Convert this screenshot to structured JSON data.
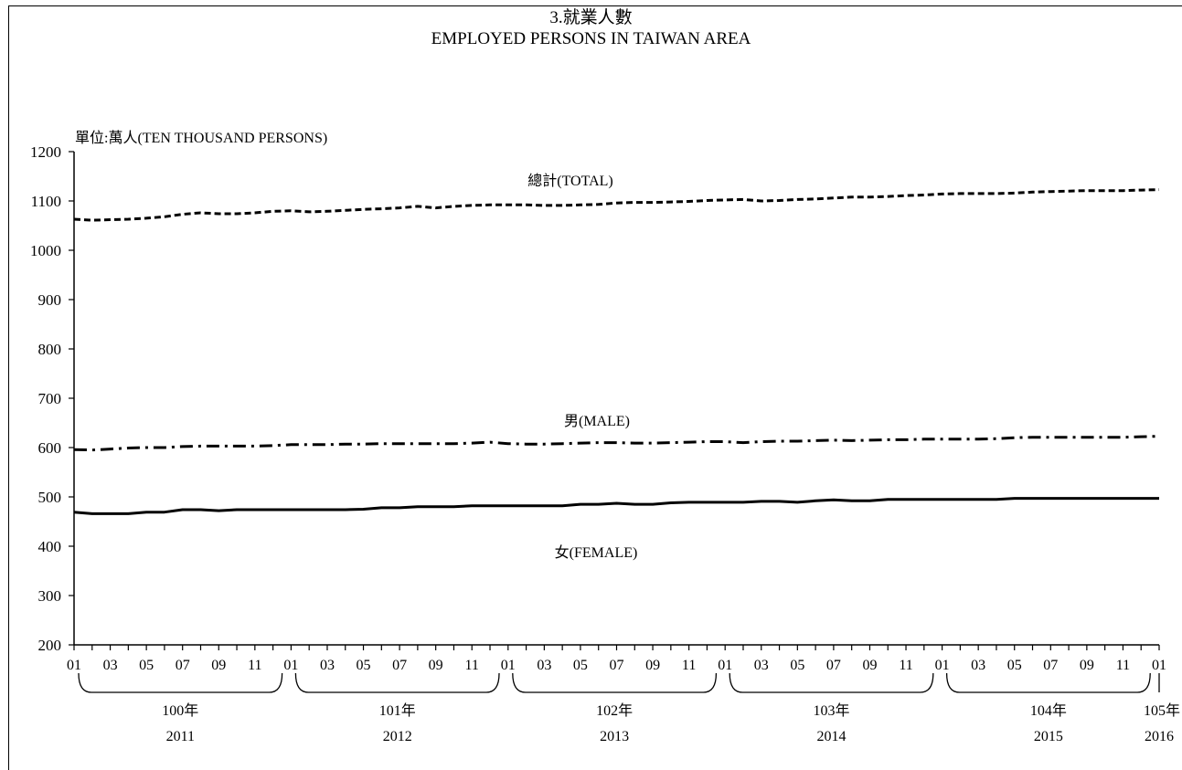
{
  "title": "3.就業人數",
  "subtitle": "EMPLOYED PERSONS IN TAIWAN AREA",
  "unit_label": "單位:萬人(TEN  THOUSAND PERSONS)",
  "chart_data": {
    "type": "line",
    "ylim": [
      200,
      1200
    ],
    "yticks": [
      200,
      300,
      400,
      500,
      600,
      700,
      800,
      900,
      1000,
      1100,
      1200
    ],
    "month_labels": [
      "01",
      "03",
      "05",
      "07",
      "09",
      "11"
    ],
    "final_month_label": "01",
    "years": [
      {
        "roc": "100年",
        "ad": "2011"
      },
      {
        "roc": "101年",
        "ad": "2012"
      },
      {
        "roc": "102年",
        "ad": "2013"
      },
      {
        "roc": "103年",
        "ad": "2014"
      },
      {
        "roc": "104年",
        "ad": "2015"
      },
      {
        "roc": "105年",
        "ad": "2016"
      }
    ],
    "series": [
      {
        "name": "總計(TOTAL)",
        "style": "dotted",
        "values": [
          1063,
          1061,
          1062,
          1063,
          1065,
          1068,
          1073,
          1076,
          1074,
          1074,
          1076,
          1079,
          1080,
          1078,
          1079,
          1081,
          1083,
          1084,
          1086,
          1089,
          1086,
          1089,
          1091,
          1092,
          1092,
          1092,
          1091,
          1091,
          1092,
          1093,
          1096,
          1097,
          1097,
          1098,
          1099,
          1101,
          1102,
          1103,
          1100,
          1101,
          1103,
          1104,
          1106,
          1108,
          1108,
          1109,
          1111,
          1112,
          1114,
          1115,
          1115,
          1115,
          1116,
          1118,
          1119,
          1120,
          1121,
          1121,
          1121,
          1122,
          1123,
          1124
        ]
      },
      {
        "name": "男(MALE)",
        "style": "dashdot",
        "values": [
          596,
          595,
          597,
          599,
          600,
          600,
          602,
          603,
          603,
          603,
          603,
          604,
          606,
          606,
          606,
          607,
          607,
          608,
          608,
          608,
          608,
          608,
          609,
          611,
          608,
          607,
          607,
          608,
          609,
          610,
          610,
          609,
          609,
          610,
          611,
          612,
          612,
          610,
          612,
          613,
          613,
          614,
          615,
          614,
          615,
          616,
          616,
          617,
          617,
          617,
          617,
          618,
          620,
          621,
          621,
          621,
          621,
          621,
          621,
          622,
          623,
          625
        ]
      },
      {
        "name": "女(FEMALE)",
        "style": "solid",
        "values": [
          469,
          466,
          466,
          466,
          469,
          469,
          474,
          474,
          472,
          474,
          474,
          474,
          474,
          474,
          474,
          474,
          475,
          478,
          478,
          480,
          480,
          480,
          482,
          482,
          482,
          482,
          482,
          482,
          485,
          485,
          487,
          485,
          485,
          488,
          489,
          489,
          489,
          489,
          491,
          491,
          489,
          492,
          494,
          492,
          492,
          495,
          495,
          495,
          495,
          495,
          495,
          495,
          497,
          497,
          497,
          497,
          497,
          497,
          497,
          497,
          497,
          497
        ]
      }
    ],
    "series_labels": [
      "總計(TOTAL)",
      "男(MALE)",
      "女(FEMALE)"
    ]
  }
}
